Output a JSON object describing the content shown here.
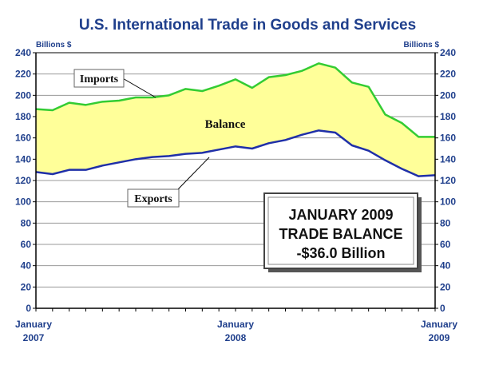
{
  "chart_data": {
    "type": "area",
    "title": "U.S. International Trade in Goods and Services",
    "ylabel_left": "Billions $",
    "ylabel_right": "Billions $",
    "ylim": [
      0,
      240
    ],
    "yticks": [
      0,
      20,
      40,
      60,
      80,
      100,
      120,
      140,
      160,
      180,
      200,
      220,
      240
    ],
    "grid": true,
    "x_labels": [
      {
        "index": 0,
        "line1": "January",
        "line2": "2007"
      },
      {
        "index": 12,
        "line1": "January",
        "line2": "2008"
      },
      {
        "index": 24,
        "line1": "January",
        "line2": "2009"
      }
    ],
    "series": [
      {
        "name": "Imports",
        "color": "#33cc33",
        "values": [
          187,
          186,
          193,
          191,
          194,
          195,
          198,
          198,
          200,
          206,
          204,
          209,
          215,
          207,
          217,
          219,
          223,
          230,
          226,
          212,
          208,
          182,
          174,
          161,
          161
        ]
      },
      {
        "name": "Exports",
        "color": "#1f2fa8",
        "values": [
          128,
          126,
          130,
          130,
          134,
          137,
          140,
          142,
          143,
          145,
          146,
          149,
          152,
          150,
          155,
          158,
          163,
          167,
          165,
          153,
          148,
          139,
          131,
          124,
          125
        ]
      }
    ],
    "fill_label": "Balance",
    "fill_color": "#ffff99",
    "annotations": {
      "imports_label": "Imports",
      "exports_label": "Exports",
      "balance_label": "Balance"
    },
    "summary_box": {
      "line1": "JANUARY 2009",
      "line2": "TRADE BALANCE",
      "line3": "-$36.0 Billion"
    }
  }
}
